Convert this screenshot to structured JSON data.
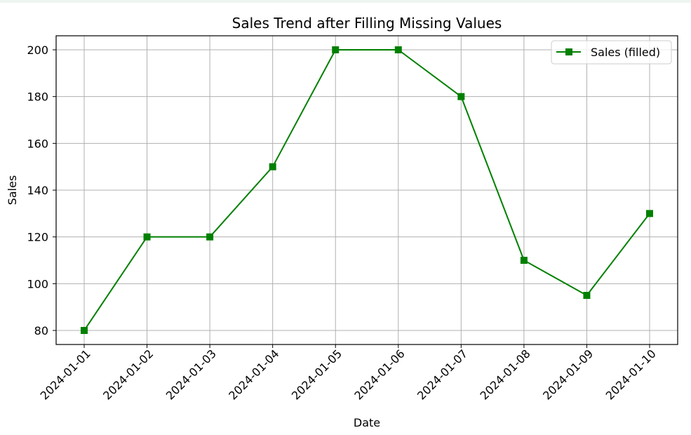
{
  "chart_data": {
    "type": "line",
    "title": "Sales Trend after Filling Missing Values",
    "xlabel": "Date",
    "ylabel": "Sales",
    "x": [
      "2024-01-01",
      "2024-01-02",
      "2024-01-03",
      "2024-01-04",
      "2024-01-05",
      "2024-01-06",
      "2024-01-07",
      "2024-01-08",
      "2024-01-09",
      "2024-01-10"
    ],
    "series": [
      {
        "name": "Sales (filled)",
        "values": [
          80,
          120,
          120,
          150,
          200,
          200,
          180,
          110,
          95,
          130
        ],
        "color": "#008000",
        "marker": "square"
      }
    ],
    "yticks": [
      80,
      100,
      120,
      140,
      160,
      180,
      200
    ],
    "ylim": [
      74,
      206
    ],
    "grid": true,
    "legend": "top-right",
    "xtick_rotation": 45
  }
}
